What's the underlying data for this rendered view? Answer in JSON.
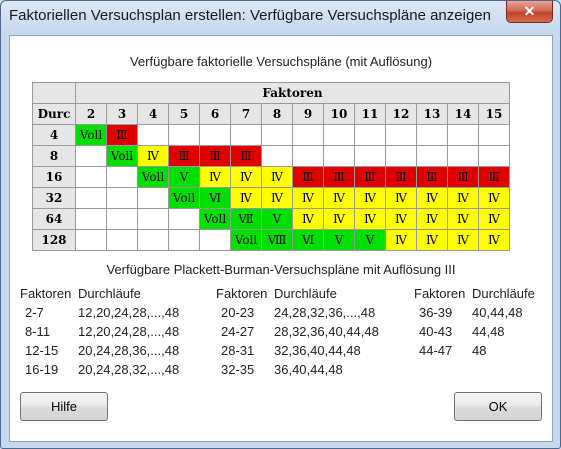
{
  "window": {
    "title": "Faktoriellen Versuchsplan erstellen: Verfügbare Versuchspläne anzeigen",
    "close_symbol": "✕"
  },
  "factorial": {
    "caption": "Verfügbare faktorielle Versuchspläne (mit Auflösung)",
    "factors_header": "Faktoren",
    "runs_header": "Durc",
    "factors": [
      "2",
      "3",
      "4",
      "5",
      "6",
      "7",
      "8",
      "9",
      "10",
      "11",
      "12",
      "13",
      "14",
      "15"
    ],
    "rows": [
      {
        "runs": "4",
        "cells": [
          [
            "Voll",
            "full"
          ],
          [
            "Ⅲ",
            "red"
          ],
          [
            "",
            ""
          ],
          [
            "",
            ""
          ],
          [
            "",
            ""
          ],
          [
            "",
            ""
          ],
          [
            "",
            ""
          ],
          [
            "",
            ""
          ],
          [
            "",
            ""
          ],
          [
            "",
            ""
          ],
          [
            "",
            ""
          ],
          [
            "",
            ""
          ],
          [
            "",
            ""
          ],
          [
            "",
            ""
          ]
        ]
      },
      {
        "runs": "8",
        "cells": [
          [
            "",
            ""
          ],
          [
            "Voll",
            "full"
          ],
          [
            "Ⅳ",
            "yellow"
          ],
          [
            "Ⅲ",
            "red"
          ],
          [
            "Ⅲ",
            "red"
          ],
          [
            "Ⅲ",
            "red"
          ],
          [
            "",
            ""
          ],
          [
            "",
            ""
          ],
          [
            "",
            ""
          ],
          [
            "",
            ""
          ],
          [
            "",
            ""
          ],
          [
            "",
            ""
          ],
          [
            "",
            ""
          ],
          [
            "",
            ""
          ]
        ]
      },
      {
        "runs": "16",
        "cells": [
          [
            "",
            ""
          ],
          [
            "",
            ""
          ],
          [
            "Voll",
            "full"
          ],
          [
            "Ⅴ",
            "green"
          ],
          [
            "Ⅳ",
            "yellow"
          ],
          [
            "Ⅳ",
            "yellow"
          ],
          [
            "Ⅳ",
            "yellow"
          ],
          [
            "Ⅲ",
            "red"
          ],
          [
            "Ⅲ",
            "red"
          ],
          [
            "Ⅲ",
            "red"
          ],
          [
            "Ⅲ",
            "red"
          ],
          [
            "Ⅲ",
            "red"
          ],
          [
            "Ⅲ",
            "red"
          ],
          [
            "Ⅲ",
            "red"
          ]
        ]
      },
      {
        "runs": "32",
        "cells": [
          [
            "",
            ""
          ],
          [
            "",
            ""
          ],
          [
            "",
            ""
          ],
          [
            "Voll",
            "full"
          ],
          [
            "Ⅵ",
            "green"
          ],
          [
            "Ⅳ",
            "yellow"
          ],
          [
            "Ⅳ",
            "yellow"
          ],
          [
            "Ⅳ",
            "yellow"
          ],
          [
            "Ⅳ",
            "yellow"
          ],
          [
            "Ⅳ",
            "yellow"
          ],
          [
            "Ⅳ",
            "yellow"
          ],
          [
            "Ⅳ",
            "yellow"
          ],
          [
            "Ⅳ",
            "yellow"
          ],
          [
            "Ⅳ",
            "yellow"
          ]
        ]
      },
      {
        "runs": "64",
        "cells": [
          [
            "",
            ""
          ],
          [
            "",
            ""
          ],
          [
            "",
            ""
          ],
          [
            "",
            ""
          ],
          [
            "Voll",
            "full"
          ],
          [
            "Ⅶ",
            "green"
          ],
          [
            "Ⅴ",
            "green"
          ],
          [
            "Ⅳ",
            "yellow"
          ],
          [
            "Ⅳ",
            "yellow"
          ],
          [
            "Ⅳ",
            "yellow"
          ],
          [
            "Ⅳ",
            "yellow"
          ],
          [
            "Ⅳ",
            "yellow"
          ],
          [
            "Ⅳ",
            "yellow"
          ],
          [
            "Ⅳ",
            "yellow"
          ]
        ]
      },
      {
        "runs": "128",
        "cells": [
          [
            "",
            ""
          ],
          [
            "",
            ""
          ],
          [
            "",
            ""
          ],
          [
            "",
            ""
          ],
          [
            "",
            ""
          ],
          [
            "Voll",
            "full"
          ],
          [
            "Ⅷ",
            "green"
          ],
          [
            "Ⅵ",
            "green"
          ],
          [
            "Ⅴ",
            "green"
          ],
          [
            "Ⅴ",
            "green"
          ],
          [
            "Ⅳ",
            "yellow"
          ],
          [
            "Ⅳ",
            "yellow"
          ],
          [
            "Ⅳ",
            "yellow"
          ],
          [
            "Ⅳ",
            "yellow"
          ]
        ]
      }
    ],
    "colors": {
      "full": "#00e000",
      "resolution_III": "#e00000",
      "resolution_IV": "#ffff00",
      "resolution_V_plus": "#00e000"
    }
  },
  "plackett_burman": {
    "caption": "Verfügbare Plackett-Burman-Versuchspläne mit Auflösung III",
    "columns": [
      {
        "factors_label": "Faktoren",
        "runs_label": "Durchläufe",
        "rows": [
          {
            "factors": "2-7",
            "runs": "12,20,24,28,...,48"
          },
          {
            "factors": "8-11",
            "runs": "12,20,24,28,...,48"
          },
          {
            "factors": "12-15",
            "runs": "20,24,28,36,...,48"
          },
          {
            "factors": "16-19",
            "runs": "20,24,28,32,...,48"
          }
        ]
      },
      {
        "factors_label": "Faktoren",
        "runs_label": "Durchläufe",
        "rows": [
          {
            "factors": "20-23",
            "runs": "24,28,32,36,...,48"
          },
          {
            "factors": "24-27",
            "runs": "28,32,36,40,44,48"
          },
          {
            "factors": "28-31",
            "runs": "32,36,40,44,48"
          },
          {
            "factors": "32-35",
            "runs": "36,40,44,48"
          }
        ]
      },
      {
        "factors_label": "Faktoren",
        "runs_label": "Durchläufe",
        "rows": [
          {
            "factors": "36-39",
            "runs": "40,44,48"
          },
          {
            "factors": "40-43",
            "runs": "44,48"
          },
          {
            "factors": "44-47",
            "runs": "48"
          }
        ]
      }
    ]
  },
  "buttons": {
    "help": "Hilfe",
    "ok": "OK"
  }
}
